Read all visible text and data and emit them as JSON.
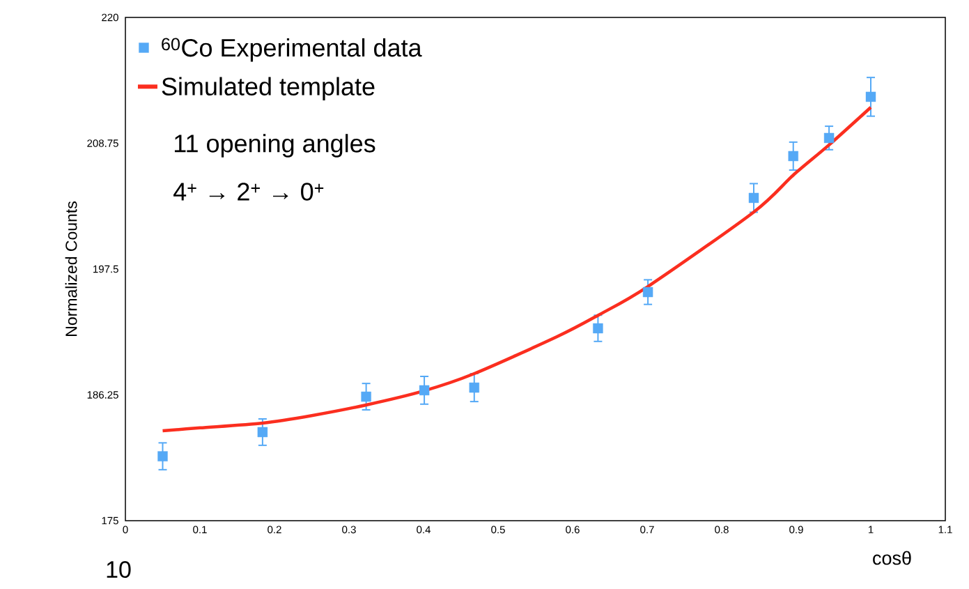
{
  "chart_data": {
    "type": "scatter",
    "xlabel": "cosθ",
    "ylabel": "Normalized Counts",
    "xlim": [
      0,
      1.1
    ],
    "ylim": [
      175,
      220
    ],
    "xticks": [
      0,
      0.1,
      0.2,
      0.3,
      0.4,
      0.5,
      0.6,
      0.7,
      0.8,
      0.9,
      1,
      1.1
    ],
    "yticks": [
      175,
      186.25,
      197.5,
      208.75,
      220
    ],
    "grid": false,
    "legend": "top left",
    "series": [
      {
        "name": "$^{60}$Co Experimental data",
        "marker": "square",
        "color": "#55a9f6",
        "x": [
          0.05,
          0.184,
          0.323,
          0.401,
          0.468,
          0.634,
          0.701,
          0.843,
          0.896,
          0.944,
          1.0
        ],
        "values": [
          180.76,
          182.92,
          186.09,
          186.66,
          186.9,
          192.2,
          195.44,
          203.86,
          207.6,
          209.22,
          212.9
        ],
        "errors": [
          1.2,
          1.18,
          1.18,
          1.24,
          1.25,
          1.17,
          1.1,
          1.28,
          1.25,
          1.05,
          1.73
        ]
      },
      {
        "name": "Simulated template",
        "type": "line",
        "marker": "none",
        "color": "#fb2e1f",
        "x": [
          0.05,
          0.1,
          0.184,
          0.25,
          0.323,
          0.4,
          0.468,
          0.579,
          0.634,
          0.701,
          0.843,
          0.896,
          0.944,
          1.0
        ],
        "values": [
          183.04,
          183.3,
          183.73,
          184.4,
          185.35,
          186.6,
          188.15,
          191.45,
          193.36,
          195.94,
          202.6,
          205.9,
          208.6,
          211.96
        ]
      }
    ],
    "annotations": [
      "11 opening angles",
      "4$^{+}$ → 2$^{+}$ → 0$^{+}$",
      "10"
    ]
  }
}
